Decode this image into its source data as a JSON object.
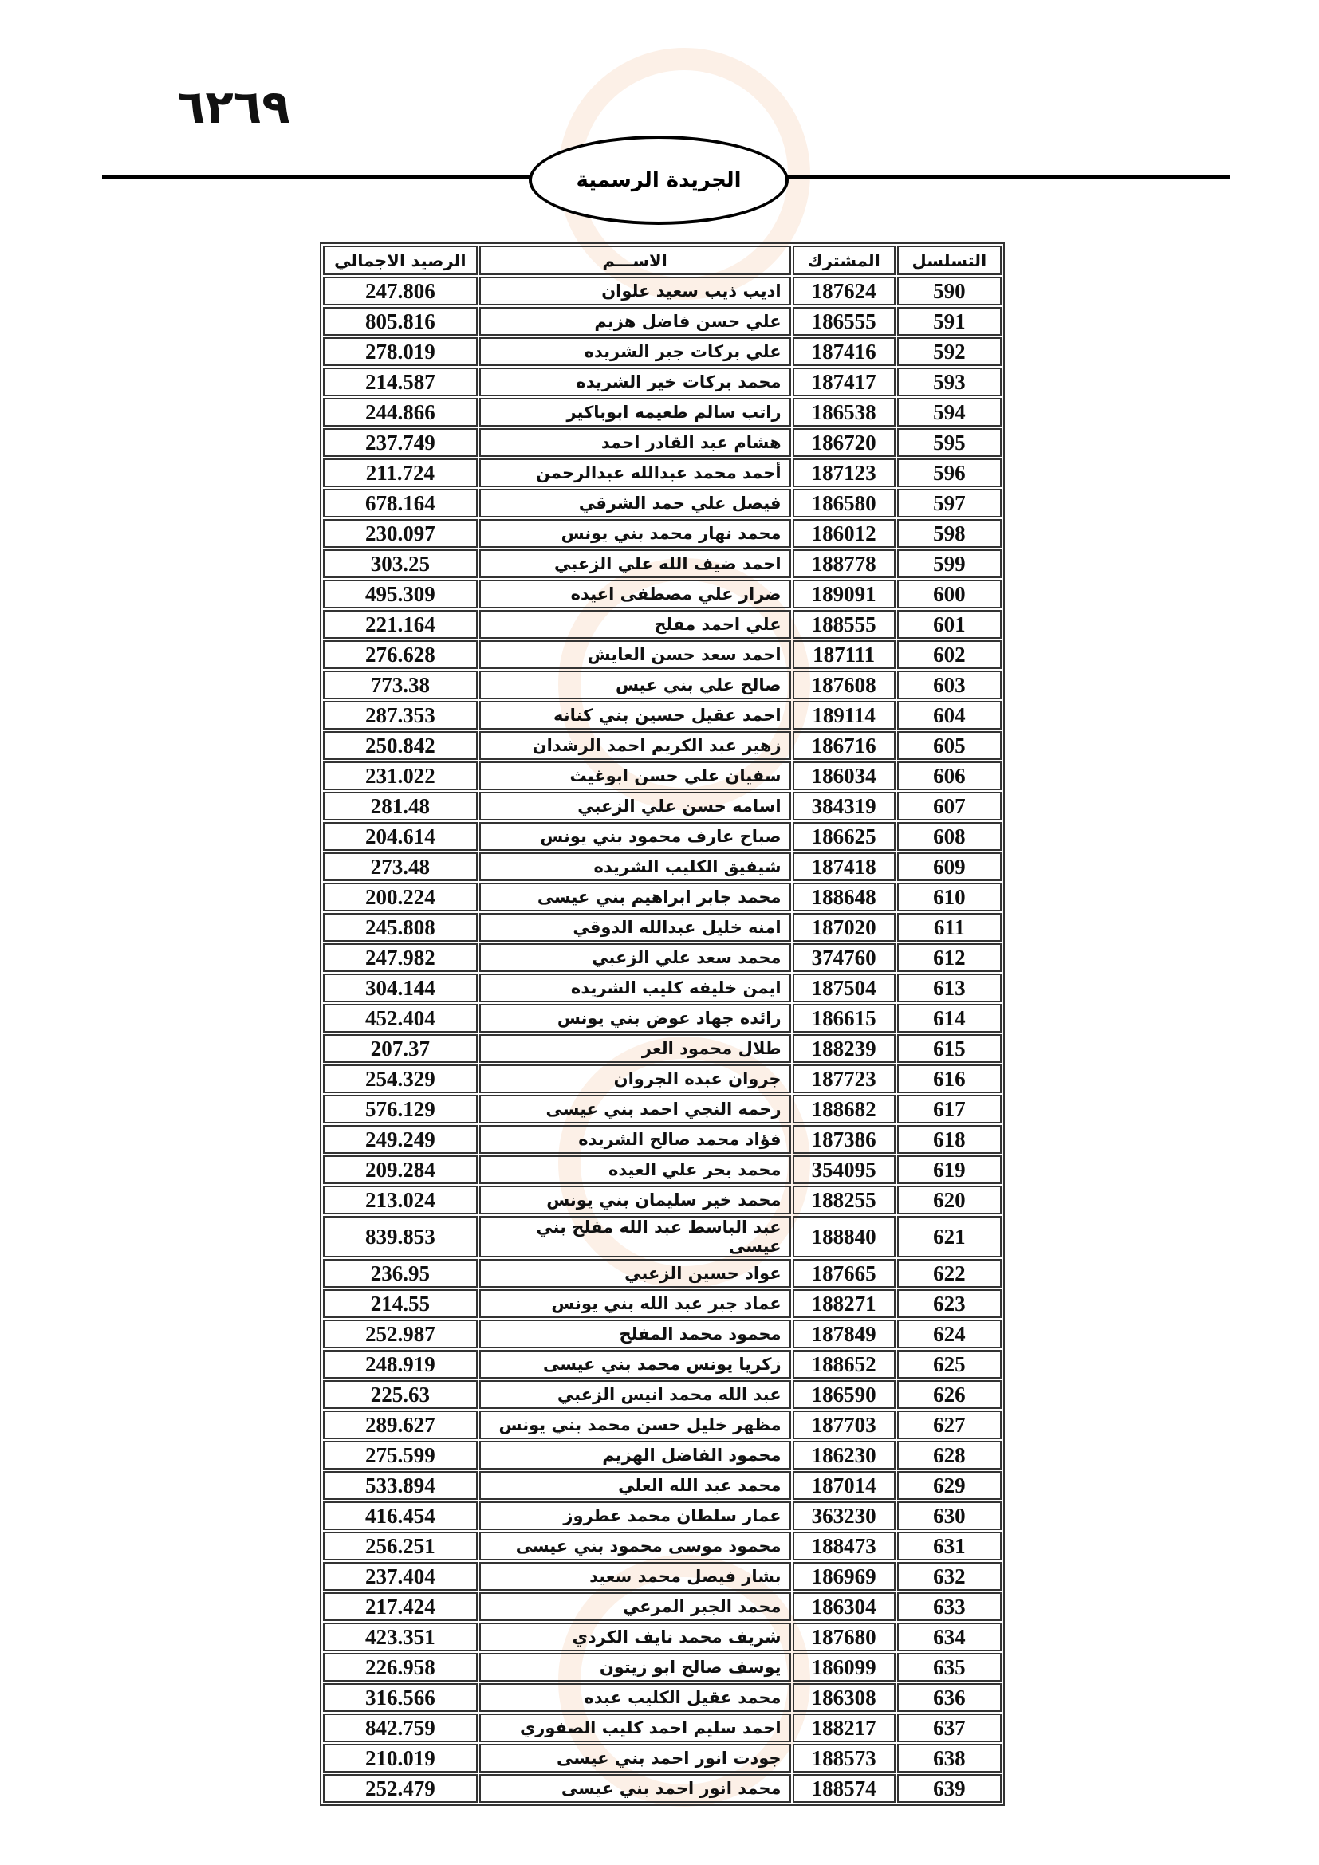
{
  "page_number": "٦٢٦٩",
  "header_title": "الجريدة الرسمية",
  "table": {
    "headers": {
      "seq": "التسلسل",
      "subscriber": "المشترك",
      "name": "الاســـم",
      "balance": "الرصيد الاجمالي"
    },
    "rows": [
      [
        "590",
        "187624",
        "اديب ذيب سعيد علوان",
        "247.806"
      ],
      [
        "591",
        "186555",
        "علي حسن فاضل هزيم",
        "805.816"
      ],
      [
        "592",
        "187416",
        "علي بركات جبر الشريده",
        "278.019"
      ],
      [
        "593",
        "187417",
        "محمد بركات خير الشريده",
        "214.587"
      ],
      [
        "594",
        "186538",
        "راتب سالم طعيمه ابوباكير",
        "244.866"
      ],
      [
        "595",
        "186720",
        "هشام عبد القادر احمد",
        "237.749"
      ],
      [
        "596",
        "187123",
        "أحمد  محمد  عبدالله عبدالرحمن",
        "211.724"
      ],
      [
        "597",
        "186580",
        "فيصل علي حمد الشرقي",
        "678.164"
      ],
      [
        "598",
        "186012",
        "محمد نهار محمد بني يونس",
        "230.097"
      ],
      [
        "599",
        "188778",
        "احمد ضيف الله علي الزعبي",
        "303.25"
      ],
      [
        "600",
        "189091",
        "ضرار علي مصطفى اعيده",
        "495.309"
      ],
      [
        "601",
        "188555",
        "علي احمد مفلح",
        "221.164"
      ],
      [
        "602",
        "187111",
        "احمد سعد حسن العايش",
        "276.628"
      ],
      [
        "603",
        "187608",
        "صالح علي بني عيس",
        "773.38"
      ],
      [
        "604",
        "189114",
        "احمد عقيل حسين بني كنانه",
        "287.353"
      ],
      [
        "605",
        "186716",
        "زهير عبد الكريم احمد الرشدان",
        "250.842"
      ],
      [
        "606",
        "186034",
        "سفيان علي حسن ابوغيث",
        "231.022"
      ],
      [
        "607",
        "384319",
        "اسامه حسن علي الزعبي",
        "281.48"
      ],
      [
        "608",
        "186625",
        "صباح عارف محمود بني يونس",
        "204.614"
      ],
      [
        "609",
        "187418",
        "شيفيق الكليب الشريده",
        "273.48"
      ],
      [
        "610",
        "188648",
        "محمد جابر ابراهيم بني عيسى",
        "200.224"
      ],
      [
        "611",
        "187020",
        "امنه خليل عبدالله الدوقي",
        "245.808"
      ],
      [
        "612",
        "374760",
        "محمد سعد علي الزعبي",
        "247.982"
      ],
      [
        "613",
        "187504",
        "ايمن خليفه كليب الشريده",
        "304.144"
      ],
      [
        "614",
        "186615",
        "رائده جهاد عوض بني يونس",
        "452.404"
      ],
      [
        "615",
        "188239",
        "طلال محمود العر",
        "207.37"
      ],
      [
        "616",
        "187723",
        "جروان عبده الجروان",
        "254.329"
      ],
      [
        "617",
        "188682",
        "رحمه النجي  احمد بني عيسى",
        "576.129"
      ],
      [
        "618",
        "187386",
        "فؤاد محمد صالح الشريده",
        "249.249"
      ],
      [
        "619",
        "354095",
        "محمد بحر علي العيده",
        "209.284"
      ],
      [
        "620",
        "188255",
        "محمد خير سليمان بني يونس",
        "213.024"
      ],
      [
        "621",
        "188840",
        "عبد الباسط عبد الله مفلح بني عيسى",
        "839.853"
      ],
      [
        "622",
        "187665",
        "عواد حسين الزعبي",
        "236.95"
      ],
      [
        "623",
        "188271",
        "عماد جبر عبد الله بني يونس",
        "214.55"
      ],
      [
        "624",
        "187849",
        "محمود محمد المفلح",
        "252.987"
      ],
      [
        "625",
        "188652",
        "زكريا يونس محمد بني عيسى",
        "248.919"
      ],
      [
        "626",
        "186590",
        "عبد الله محمد انيس الزعبي",
        "225.63"
      ],
      [
        "627",
        "187703",
        "مظهر خليل حسن محمد بني يونس",
        "289.627"
      ],
      [
        "628",
        "186230",
        "محمود الفاضل الهزيم",
        "275.599"
      ],
      [
        "629",
        "187014",
        "محمد عبد الله العلي",
        "533.894"
      ],
      [
        "630",
        "363230",
        "عمار سلطان محمد عطروز",
        "416.454"
      ],
      [
        "631",
        "188473",
        "محمود موسى محمود بني عيسى",
        "256.251"
      ],
      [
        "632",
        "186969",
        "بشار فيصل محمد سعيد",
        "237.404"
      ],
      [
        "633",
        "186304",
        "محمد الجبر المرعي",
        "217.424"
      ],
      [
        "634",
        "187680",
        "شريف محمد نايف الكردي",
        "423.351"
      ],
      [
        "635",
        "186099",
        "يوسف صالح ابو زيتون",
        "226.958"
      ],
      [
        "636",
        "186308",
        "محمد عقيل الكليب عبده",
        "316.566"
      ],
      [
        "637",
        "188217",
        "احمد سليم احمد كليب الصفوري",
        "842.759"
      ],
      [
        "638",
        "188573",
        "جودت انور احمد بني عيسى",
        "210.019"
      ],
      [
        "639",
        "188574",
        "محمد انور احمد بني عيسى",
        "252.479"
      ]
    ]
  }
}
